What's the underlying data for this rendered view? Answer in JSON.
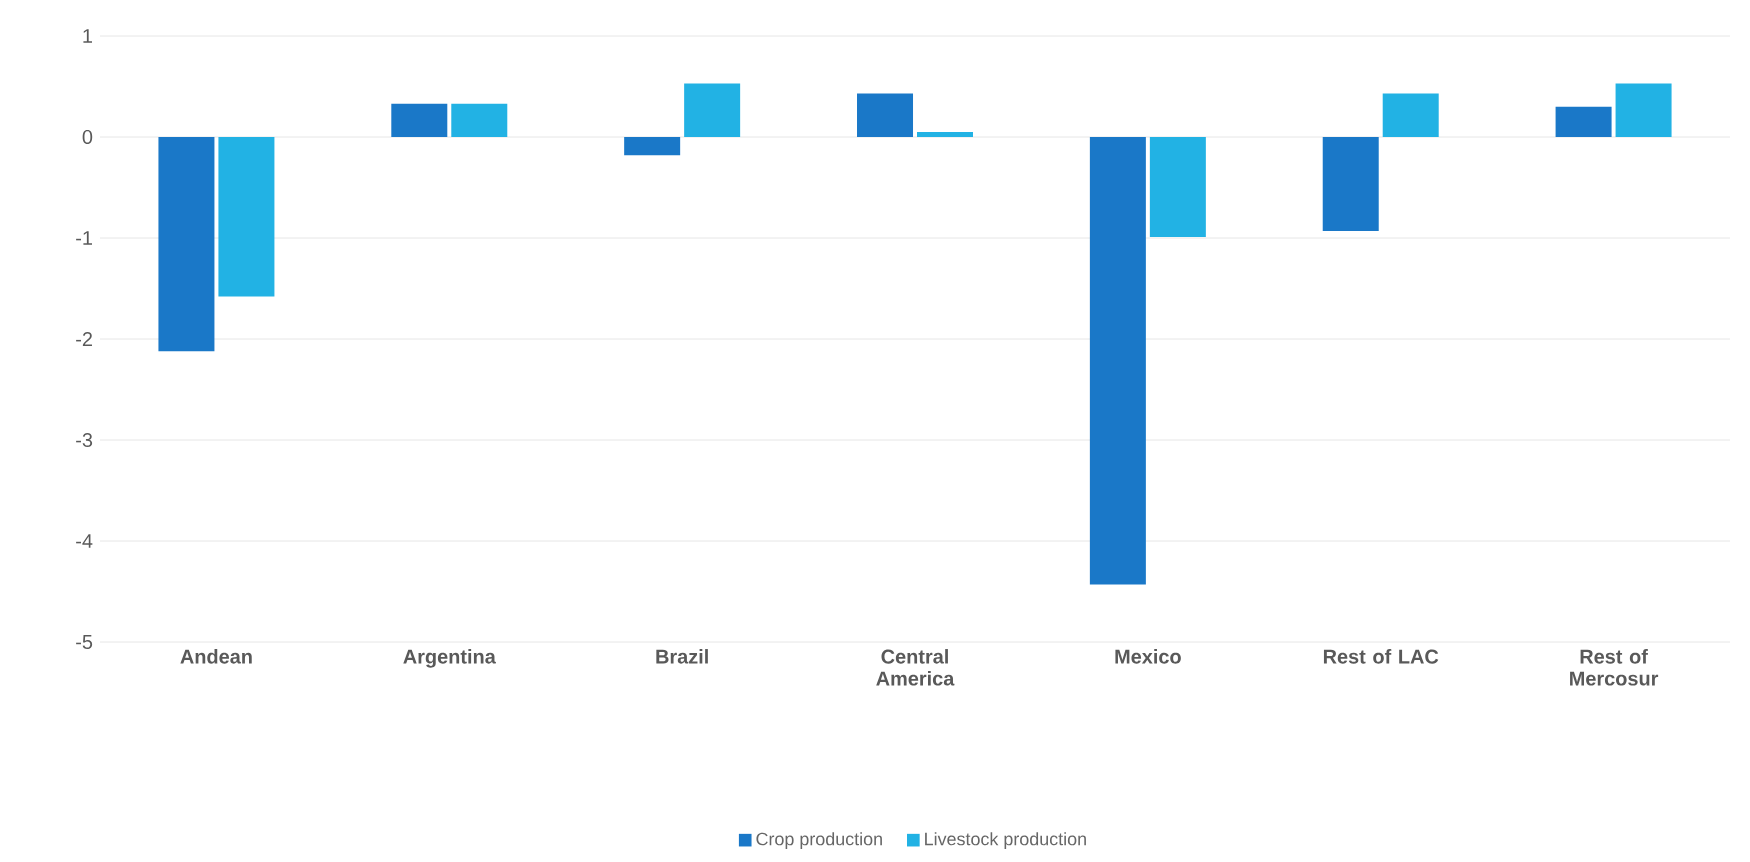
{
  "chart_data": {
    "type": "bar",
    "categories": [
      "Andean",
      "Argentina",
      "Brazil",
      "Central America",
      "Mexico",
      "Rest of LAC",
      "Rest of Mercosur"
    ],
    "series": [
      {
        "name": "Crop production",
        "color": "#1a78c8",
        "values": [
          -2.12,
          0.33,
          -0.18,
          0.43,
          -4.43,
          -0.93,
          0.3
        ]
      },
      {
        "name": "Livestock production",
        "color": "#22b2e4",
        "values": [
          -1.58,
          0.33,
          0.53,
          0.05,
          -0.99,
          0.43,
          0.53
        ]
      }
    ],
    "ylim": [
      -5,
      1
    ],
    "yticks": [
      -5,
      -4,
      -3,
      -2,
      -1,
      0,
      1
    ],
    "grid": "y",
    "legend": "bottom"
  }
}
